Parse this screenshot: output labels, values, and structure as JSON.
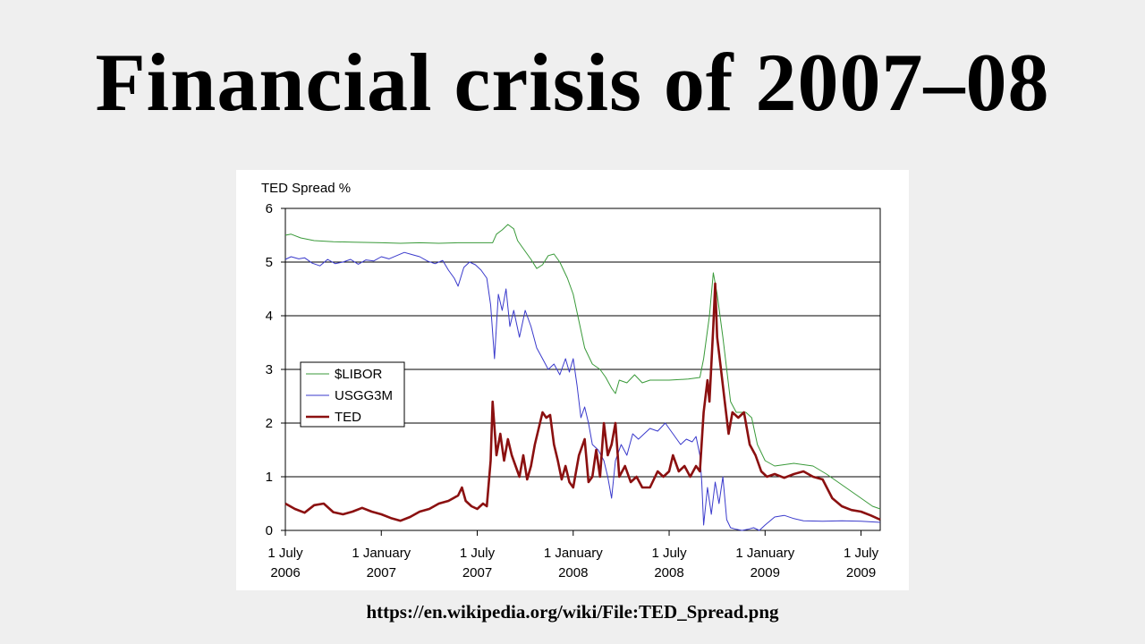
{
  "slide": {
    "title": "Financial crisis of 2007–08",
    "source_url": "https://en.wikipedia.org/wiki/File:TED_Spread.png"
  },
  "chart_data": {
    "type": "line",
    "title": "TED Spread %",
    "ylim": [
      0,
      6
    ],
    "yticks": [
      "0",
      "1",
      "2",
      "3",
      "4",
      "5",
      "6"
    ],
    "xlim": [
      2006.5,
      2009.6
    ],
    "xticks": [
      {
        "x": 2006.5,
        "line1": "1 July",
        "line2": "2006"
      },
      {
        "x": 2007.0,
        "line1": "1 January",
        "line2": "2007"
      },
      {
        "x": 2007.5,
        "line1": "1 July",
        "line2": "2007"
      },
      {
        "x": 2008.0,
        "line1": "1 January",
        "line2": "2008"
      },
      {
        "x": 2008.5,
        "line1": "1 July",
        "line2": "2008"
      },
      {
        "x": 2009.0,
        "line1": "1 January",
        "line2": "2009"
      },
      {
        "x": 2009.5,
        "line1": "1 July",
        "line2": "2009"
      }
    ],
    "grid": "horizontal",
    "legend_position": "middle-left",
    "series": [
      {
        "name": "$LIBOR",
        "color": "#3a9a3a",
        "width": 1,
        "points": [
          [
            2006.5,
            5.5
          ],
          [
            2006.53,
            5.52
          ],
          [
            2006.58,
            5.45
          ],
          [
            2006.65,
            5.4
          ],
          [
            2006.75,
            5.38
          ],
          [
            2006.85,
            5.37
          ],
          [
            2007.0,
            5.36
          ],
          [
            2007.1,
            5.35
          ],
          [
            2007.2,
            5.36
          ],
          [
            2007.3,
            5.35
          ],
          [
            2007.4,
            5.36
          ],
          [
            2007.5,
            5.36
          ],
          [
            2007.58,
            5.36
          ],
          [
            2007.6,
            5.52
          ],
          [
            2007.63,
            5.6
          ],
          [
            2007.66,
            5.7
          ],
          [
            2007.69,
            5.62
          ],
          [
            2007.71,
            5.4
          ],
          [
            2007.74,
            5.25
          ],
          [
            2007.78,
            5.05
          ],
          [
            2007.81,
            4.88
          ],
          [
            2007.84,
            4.95
          ],
          [
            2007.87,
            5.12
          ],
          [
            2007.9,
            5.15
          ],
          [
            2007.93,
            5.0
          ],
          [
            2007.97,
            4.7
          ],
          [
            2008.0,
            4.4
          ],
          [
            2008.03,
            3.9
          ],
          [
            2008.06,
            3.4
          ],
          [
            2008.1,
            3.1
          ],
          [
            2008.14,
            3.0
          ],
          [
            2008.17,
            2.85
          ],
          [
            2008.2,
            2.65
          ],
          [
            2008.22,
            2.55
          ],
          [
            2008.24,
            2.8
          ],
          [
            2008.28,
            2.75
          ],
          [
            2008.32,
            2.9
          ],
          [
            2008.36,
            2.75
          ],
          [
            2008.4,
            2.8
          ],
          [
            2008.5,
            2.8
          ],
          [
            2008.6,
            2.82
          ],
          [
            2008.66,
            2.85
          ],
          [
            2008.68,
            3.2
          ],
          [
            2008.71,
            4.0
          ],
          [
            2008.73,
            4.8
          ],
          [
            2008.75,
            4.4
          ],
          [
            2008.78,
            3.6
          ],
          [
            2008.82,
            2.4
          ],
          [
            2008.85,
            2.2
          ],
          [
            2008.9,
            2.2
          ],
          [
            2008.93,
            2.1
          ],
          [
            2008.96,
            1.6
          ],
          [
            2009.0,
            1.3
          ],
          [
            2009.05,
            1.2
          ],
          [
            2009.15,
            1.25
          ],
          [
            2009.25,
            1.2
          ],
          [
            2009.32,
            1.05
          ],
          [
            2009.4,
            0.85
          ],
          [
            2009.48,
            0.65
          ],
          [
            2009.56,
            0.45
          ],
          [
            2009.6,
            0.4
          ]
        ]
      },
      {
        "name": "USGG3M",
        "color": "#3a3acc",
        "width": 1,
        "points": [
          [
            2006.5,
            5.05
          ],
          [
            2006.53,
            5.1
          ],
          [
            2006.57,
            5.06
          ],
          [
            2006.6,
            5.08
          ],
          [
            2006.64,
            4.98
          ],
          [
            2006.68,
            4.93
          ],
          [
            2006.72,
            5.05
          ],
          [
            2006.76,
            4.97
          ],
          [
            2006.8,
            5.0
          ],
          [
            2006.84,
            5.05
          ],
          [
            2006.88,
            4.96
          ],
          [
            2006.92,
            5.04
          ],
          [
            2006.96,
            5.02
          ],
          [
            2007.0,
            5.1
          ],
          [
            2007.04,
            5.06
          ],
          [
            2007.08,
            5.12
          ],
          [
            2007.12,
            5.18
          ],
          [
            2007.16,
            5.14
          ],
          [
            2007.2,
            5.1
          ],
          [
            2007.24,
            5.02
          ],
          [
            2007.28,
            4.97
          ],
          [
            2007.32,
            5.03
          ],
          [
            2007.35,
            4.85
          ],
          [
            2007.38,
            4.7
          ],
          [
            2007.4,
            4.55
          ],
          [
            2007.43,
            4.9
          ],
          [
            2007.46,
            5.0
          ],
          [
            2007.49,
            4.95
          ],
          [
            2007.52,
            4.85
          ],
          [
            2007.55,
            4.7
          ],
          [
            2007.57,
            4.2
          ],
          [
            2007.59,
            3.2
          ],
          [
            2007.61,
            4.4
          ],
          [
            2007.63,
            4.1
          ],
          [
            2007.65,
            4.5
          ],
          [
            2007.67,
            3.8
          ],
          [
            2007.69,
            4.1
          ],
          [
            2007.72,
            3.6
          ],
          [
            2007.75,
            4.1
          ],
          [
            2007.78,
            3.8
          ],
          [
            2007.81,
            3.4
          ],
          [
            2007.84,
            3.2
          ],
          [
            2007.87,
            3.0
          ],
          [
            2007.9,
            3.1
          ],
          [
            2007.93,
            2.9
          ],
          [
            2007.96,
            3.2
          ],
          [
            2007.98,
            2.95
          ],
          [
            2008.0,
            3.2
          ],
          [
            2008.02,
            2.7
          ],
          [
            2008.04,
            2.1
          ],
          [
            2008.06,
            2.3
          ],
          [
            2008.08,
            2.0
          ],
          [
            2008.1,
            1.6
          ],
          [
            2008.13,
            1.5
          ],
          [
            2008.16,
            1.3
          ],
          [
            2008.18,
            1.0
          ],
          [
            2008.2,
            0.6
          ],
          [
            2008.22,
            1.3
          ],
          [
            2008.25,
            1.6
          ],
          [
            2008.28,
            1.4
          ],
          [
            2008.31,
            1.8
          ],
          [
            2008.34,
            1.7
          ],
          [
            2008.37,
            1.8
          ],
          [
            2008.4,
            1.9
          ],
          [
            2008.44,
            1.85
          ],
          [
            2008.48,
            2.0
          ],
          [
            2008.52,
            1.8
          ],
          [
            2008.56,
            1.6
          ],
          [
            2008.59,
            1.7
          ],
          [
            2008.62,
            1.65
          ],
          [
            2008.64,
            1.75
          ],
          [
            2008.66,
            1.4
          ],
          [
            2008.67,
            0.9
          ],
          [
            2008.68,
            0.1
          ],
          [
            2008.7,
            0.8
          ],
          [
            2008.72,
            0.3
          ],
          [
            2008.74,
            0.9
          ],
          [
            2008.76,
            0.5
          ],
          [
            2008.78,
            1.0
          ],
          [
            2008.8,
            0.2
          ],
          [
            2008.82,
            0.05
          ],
          [
            2008.85,
            0.02
          ],
          [
            2008.88,
            0.0
          ],
          [
            2008.91,
            0.02
          ],
          [
            2008.94,
            0.05
          ],
          [
            2008.97,
            0.0
          ],
          [
            2009.0,
            0.1
          ],
          [
            2009.05,
            0.25
          ],
          [
            2009.1,
            0.28
          ],
          [
            2009.15,
            0.22
          ],
          [
            2009.2,
            0.18
          ],
          [
            2009.3,
            0.17
          ],
          [
            2009.4,
            0.18
          ],
          [
            2009.5,
            0.17
          ],
          [
            2009.6,
            0.15
          ]
        ]
      },
      {
        "name": "TED",
        "color": "#8b1010",
        "width": 2.6,
        "points": [
          [
            2006.5,
            0.5
          ],
          [
            2006.55,
            0.4
          ],
          [
            2006.6,
            0.33
          ],
          [
            2006.65,
            0.47
          ],
          [
            2006.7,
            0.5
          ],
          [
            2006.75,
            0.34
          ],
          [
            2006.8,
            0.3
          ],
          [
            2006.85,
            0.35
          ],
          [
            2006.9,
            0.42
          ],
          [
            2006.95,
            0.35
          ],
          [
            2007.0,
            0.3
          ],
          [
            2007.05,
            0.23
          ],
          [
            2007.1,
            0.18
          ],
          [
            2007.15,
            0.25
          ],
          [
            2007.2,
            0.35
          ],
          [
            2007.25,
            0.4
          ],
          [
            2007.3,
            0.5
          ],
          [
            2007.35,
            0.55
          ],
          [
            2007.4,
            0.65
          ],
          [
            2007.42,
            0.8
          ],
          [
            2007.44,
            0.55
          ],
          [
            2007.47,
            0.45
          ],
          [
            2007.5,
            0.4
          ],
          [
            2007.53,
            0.5
          ],
          [
            2007.55,
            0.45
          ],
          [
            2007.57,
            1.3
          ],
          [
            2007.58,
            2.4
          ],
          [
            2007.6,
            1.4
          ],
          [
            2007.62,
            1.8
          ],
          [
            2007.64,
            1.3
          ],
          [
            2007.66,
            1.7
          ],
          [
            2007.68,
            1.4
          ],
          [
            2007.7,
            1.2
          ],
          [
            2007.72,
            1.0
          ],
          [
            2007.74,
            1.4
          ],
          [
            2007.76,
            0.95
          ],
          [
            2007.78,
            1.2
          ],
          [
            2007.8,
            1.6
          ],
          [
            2007.82,
            1.9
          ],
          [
            2007.84,
            2.2
          ],
          [
            2007.86,
            2.1
          ],
          [
            2007.88,
            2.15
          ],
          [
            2007.9,
            1.6
          ],
          [
            2007.92,
            1.3
          ],
          [
            2007.94,
            0.95
          ],
          [
            2007.96,
            1.2
          ],
          [
            2007.98,
            0.9
          ],
          [
            2008.0,
            0.8
          ],
          [
            2008.03,
            1.4
          ],
          [
            2008.06,
            1.7
          ],
          [
            2008.08,
            0.9
          ],
          [
            2008.1,
            1.0
          ],
          [
            2008.12,
            1.5
          ],
          [
            2008.14,
            1.0
          ],
          [
            2008.16,
            2.0
          ],
          [
            2008.18,
            1.4
          ],
          [
            2008.2,
            1.6
          ],
          [
            2008.22,
            2.0
          ],
          [
            2008.24,
            1.0
          ],
          [
            2008.27,
            1.2
          ],
          [
            2008.3,
            0.9
          ],
          [
            2008.33,
            1.0
          ],
          [
            2008.36,
            0.8
          ],
          [
            2008.4,
            0.8
          ],
          [
            2008.44,
            1.1
          ],
          [
            2008.47,
            1.0
          ],
          [
            2008.5,
            1.1
          ],
          [
            2008.52,
            1.4
          ],
          [
            2008.55,
            1.1
          ],
          [
            2008.58,
            1.2
          ],
          [
            2008.61,
            1.0
          ],
          [
            2008.64,
            1.2
          ],
          [
            2008.66,
            1.1
          ],
          [
            2008.68,
            2.2
          ],
          [
            2008.7,
            2.8
          ],
          [
            2008.71,
            2.4
          ],
          [
            2008.73,
            3.8
          ],
          [
            2008.74,
            4.6
          ],
          [
            2008.75,
            3.6
          ],
          [
            2008.77,
            3.0
          ],
          [
            2008.79,
            2.4
          ],
          [
            2008.81,
            1.8
          ],
          [
            2008.83,
            2.2
          ],
          [
            2008.86,
            2.1
          ],
          [
            2008.89,
            2.2
          ],
          [
            2008.92,
            1.6
          ],
          [
            2008.95,
            1.4
          ],
          [
            2008.98,
            1.1
          ],
          [
            2009.01,
            1.0
          ],
          [
            2009.05,
            1.05
          ],
          [
            2009.1,
            0.98
          ],
          [
            2009.15,
            1.05
          ],
          [
            2009.2,
            1.1
          ],
          [
            2009.25,
            1.0
          ],
          [
            2009.3,
            0.95
          ],
          [
            2009.35,
            0.6
          ],
          [
            2009.4,
            0.45
          ],
          [
            2009.45,
            0.38
          ],
          [
            2009.5,
            0.35
          ],
          [
            2009.55,
            0.28
          ],
          [
            2009.6,
            0.2
          ]
        ]
      }
    ]
  }
}
